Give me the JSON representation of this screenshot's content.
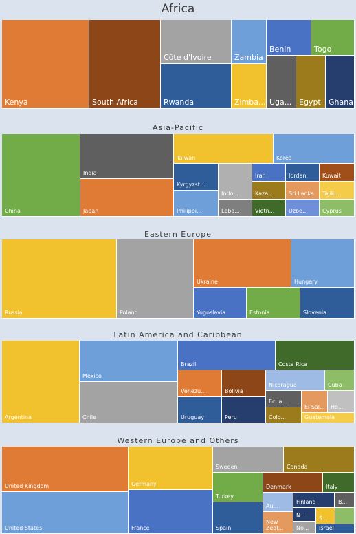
{
  "chart_data": [
    {
      "type": "treemap",
      "title": "Africa",
      "nodes": [
        {
          "label": "Kenya",
          "color": "#df7b34"
        },
        {
          "label": "South Africa",
          "color": "#8c4618"
        },
        {
          "label": "Côte d'Ivoire",
          "color": "#a3a3a3"
        },
        {
          "label": "Rwanda",
          "color": "#2f5d9a"
        },
        {
          "label": "Zambia",
          "color": "#6f9fd8"
        },
        {
          "label": "Zimba...",
          "color": "#f2c12e"
        },
        {
          "label": "Benin",
          "color": "#4a72c4"
        },
        {
          "label": "Togo",
          "color": "#72ac48"
        },
        {
          "label": "Uga...",
          "color": "#5f5f5f"
        },
        {
          "label": "Egypt",
          "color": "#9b7b1c"
        },
        {
          "label": "Ghana",
          "color": "#263e6e"
        }
      ]
    },
    {
      "type": "treemap",
      "title": "Asia-Pacific",
      "nodes": [
        {
          "label": "China",
          "color": "#72ac48"
        },
        {
          "label": "India",
          "color": "#5f5f5f"
        },
        {
          "label": "Japan",
          "color": "#df7b34"
        },
        {
          "label": "Taiwan",
          "color": "#f2c12e"
        },
        {
          "label": "Korea",
          "color": "#6f9fd8"
        },
        {
          "label": "Kyrgyzst...",
          "color": "#2f5d9a"
        },
        {
          "label": "Philippi...",
          "color": "#6f9fd8"
        },
        {
          "label": "Indo...",
          "color": "#b0b0b0"
        },
        {
          "label": "Leba...",
          "color": "#7f7f7f"
        },
        {
          "label": "Iran",
          "color": "#4a72c4"
        },
        {
          "label": "Kaza...",
          "color": "#9b7b1c"
        },
        {
          "label": "Vietn...",
          "color": "#3f6a2a"
        },
        {
          "label": "Jordan",
          "color": "#2f5d9a"
        },
        {
          "label": "Sri Lanka",
          "color": "#e49a5e"
        },
        {
          "label": "Uzbe...",
          "color": "#6f8fd8"
        },
        {
          "label": "Kuwait",
          "color": "#a14f1a"
        },
        {
          "label": "Tajiki...",
          "color": "#f5cc4a"
        },
        {
          "label": "Cyprus",
          "color": "#8dbd66"
        }
      ]
    },
    {
      "type": "treemap",
      "title": "Eastern Europe",
      "nodes": [
        {
          "label": "Russia",
          "color": "#f2c12e"
        },
        {
          "label": "Poland",
          "color": "#a3a3a3"
        },
        {
          "label": "Ukraine",
          "color": "#df7b34"
        },
        {
          "label": "Hungary",
          "color": "#6f9fd8"
        },
        {
          "label": "Yugoslavia",
          "color": "#4a72c4"
        },
        {
          "label": "Estonia",
          "color": "#72ac48"
        },
        {
          "label": "Slovenia",
          "color": "#2f5d9a"
        }
      ]
    },
    {
      "type": "treemap",
      "title": "Latin America and Caribbean",
      "nodes": [
        {
          "label": "Argentina",
          "color": "#f2c12e"
        },
        {
          "label": "Mexico",
          "color": "#6f9fd8"
        },
        {
          "label": "Chile",
          "color": "#a3a3a3"
        },
        {
          "label": "Brazil",
          "color": "#4a72c4"
        },
        {
          "label": "Costa Rica",
          "color": "#3f6a2a"
        },
        {
          "label": "Venezu...",
          "color": "#df7b34"
        },
        {
          "label": "Uruguay",
          "color": "#2f5d9a"
        },
        {
          "label": "Bolivia",
          "color": "#8c4618"
        },
        {
          "label": "Peru",
          "color": "#263e6e"
        },
        {
          "label": "Nicaragua",
          "color": "#9dbbe4"
        },
        {
          "label": "Cuba",
          "color": "#8dbd66"
        },
        {
          "label": "Ecua...",
          "color": "#5f5f5f"
        },
        {
          "label": "Colo...",
          "color": "#9b7b1c"
        },
        {
          "label": "El Sal...",
          "color": "#e49a5e"
        },
        {
          "label": "Ho...",
          "color": "#c0c0c0"
        },
        {
          "label": "Guatemala",
          "color": "#f5cc4a"
        }
      ]
    },
    {
      "type": "treemap",
      "title": "Western Europe and Others",
      "nodes": [
        {
          "label": "United Kingdom",
          "color": "#df7b34"
        },
        {
          "label": "United States",
          "color": "#6f9fd8"
        },
        {
          "label": "Germany",
          "color": "#f2c12e"
        },
        {
          "label": "France",
          "color": "#4a72c4"
        },
        {
          "label": "Sweden",
          "color": "#a3a3a3"
        },
        {
          "label": "Canada",
          "color": "#9b7b1c"
        },
        {
          "label": "Turkey",
          "color": "#72ac48"
        },
        {
          "label": "Spain",
          "color": "#2f5d9a"
        },
        {
          "label": "Denmark",
          "color": "#8c4618"
        },
        {
          "label": "Italy",
          "color": "#3f6a2a"
        },
        {
          "label": "Au...",
          "color": "#9dbbe4"
        },
        {
          "label": "New Zeal...",
          "color": "#e49a5e"
        },
        {
          "label": "Finland",
          "color": "#263e6e"
        },
        {
          "label": "N...",
          "color": "#263e6e"
        },
        {
          "label": "No...",
          "color": "#a3a3a3"
        },
        {
          "label": "S...",
          "color": "#f2c12e"
        },
        {
          "label": "B...",
          "color": "#5f5f5f"
        },
        {
          "label": "Israel",
          "color": "#2f5d9a"
        },
        {
          "label": "",
          "color": "#8dbd66"
        }
      ]
    }
  ]
}
